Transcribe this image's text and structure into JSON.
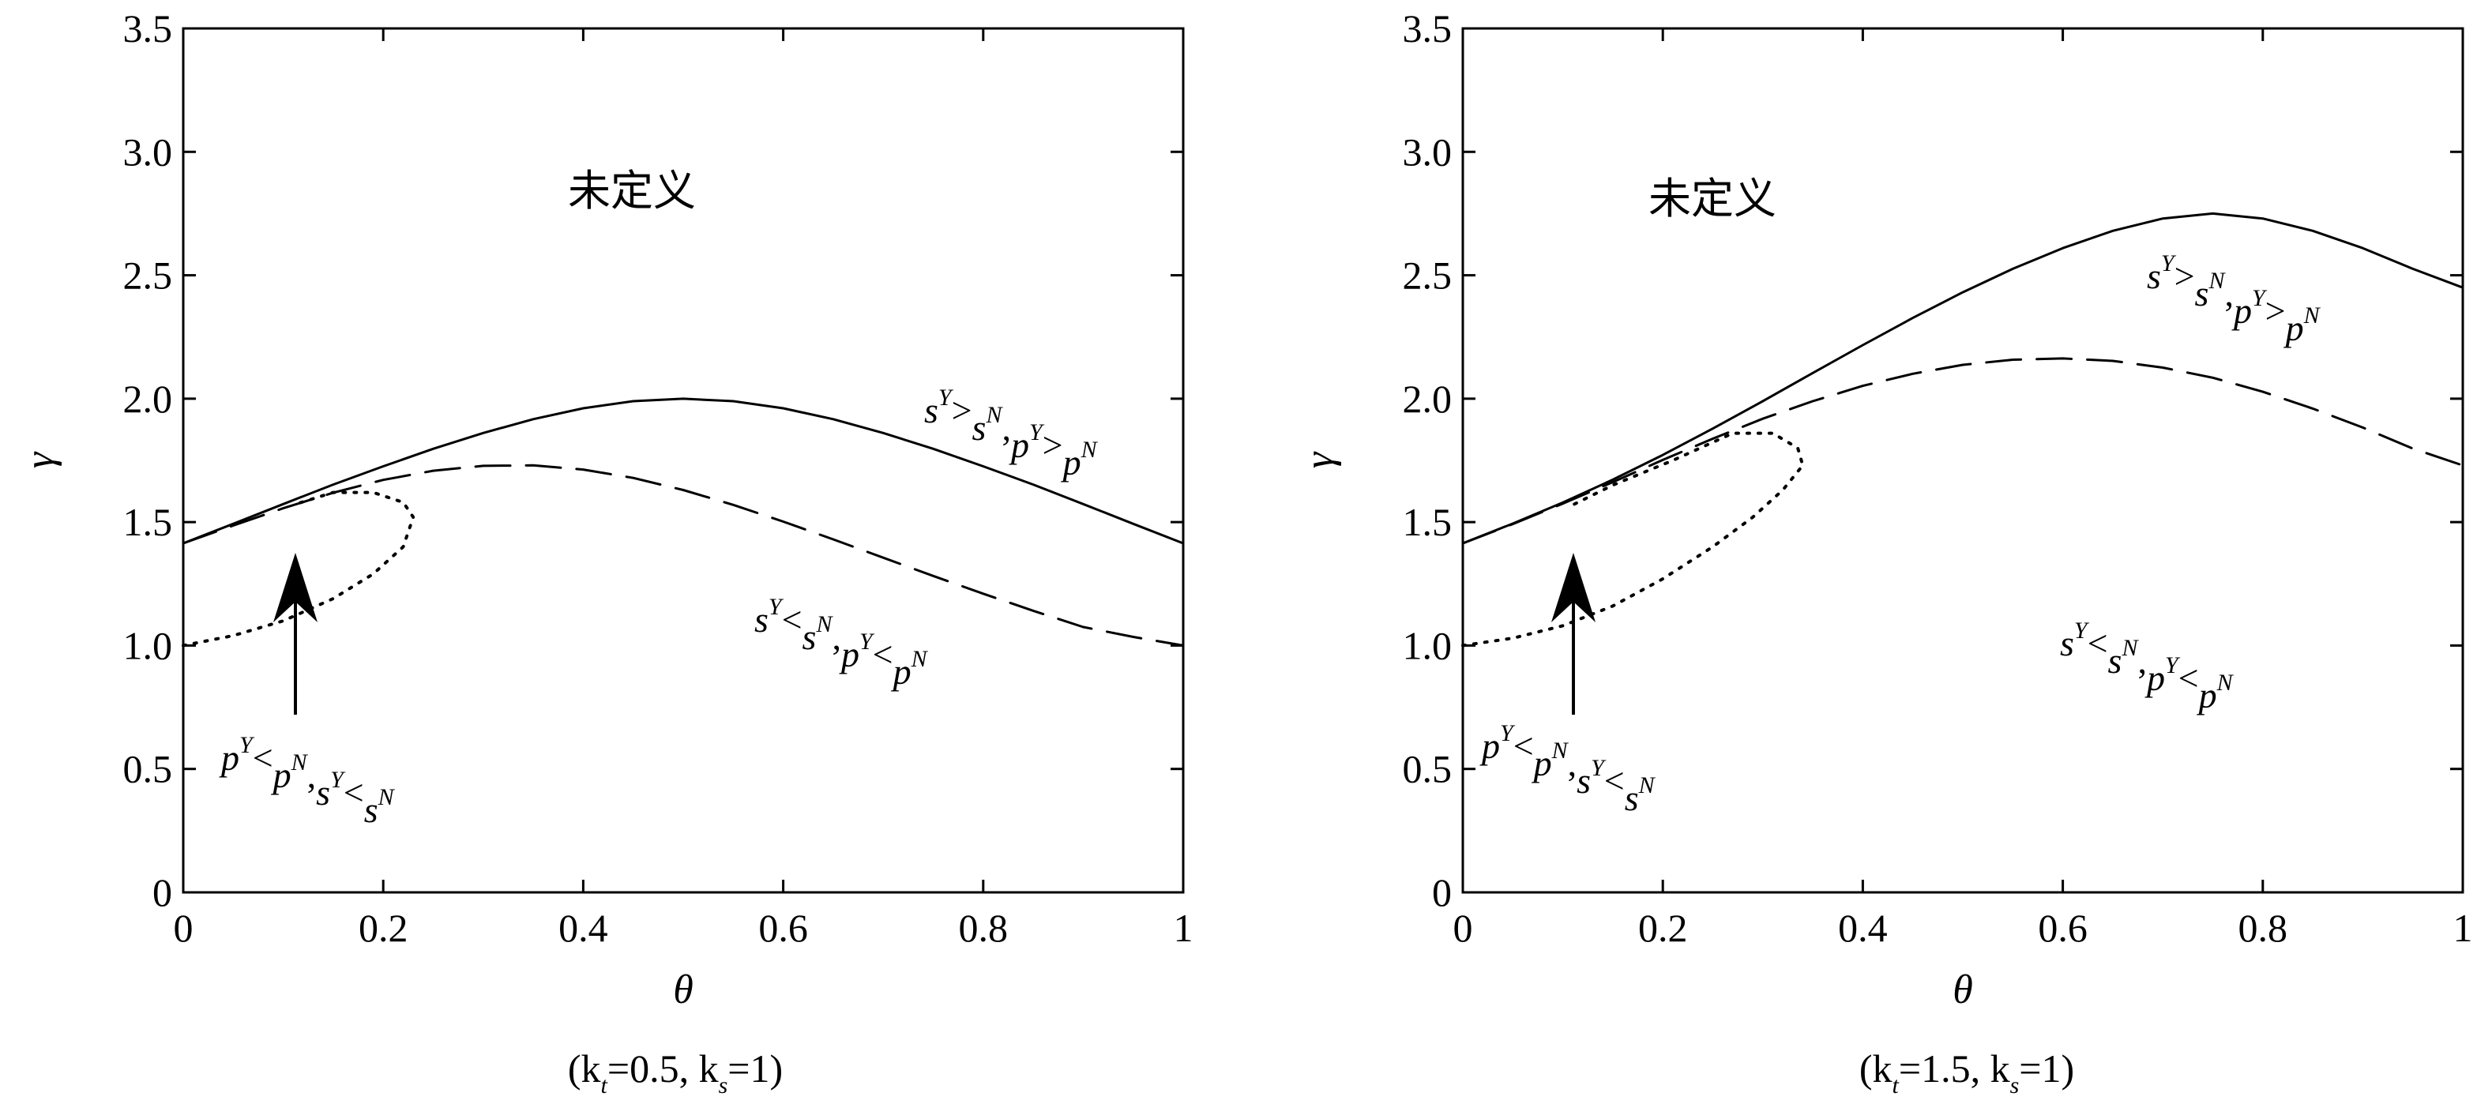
{
  "chart_data": [
    {
      "type": "line",
      "caption": "(k_t=0.5, k_s=1)",
      "caption_parts": {
        "open": "(k",
        "sub1": "t",
        "mid": "=0.5, k",
        "sub2": "s",
        "close": "=1)"
      },
      "xlabel": "θ",
      "ylabel": "γ",
      "xlim": [
        0,
        1
      ],
      "ylim": [
        0,
        3.5
      ],
      "xticks": [
        0,
        0.2,
        0.4,
        0.6,
        0.8,
        1
      ],
      "xtick_labels": [
        "0",
        "0.2",
        "0.4",
        "0.6",
        "0.8",
        "1"
      ],
      "yticks": [
        0,
        0.5,
        1.0,
        1.5,
        2.0,
        2.5,
        3.0,
        3.5
      ],
      "ytick_labels": [
        "0",
        "0.5",
        "1.0",
        "1.5",
        "2.0",
        "2.5",
        "3.0",
        "3.5"
      ],
      "grid": false,
      "series": [
        {
          "style": "solid",
          "x": [
            0,
            0.05,
            0.1,
            0.15,
            0.2,
            0.25,
            0.3,
            0.35,
            0.4,
            0.45,
            0.5,
            0.55,
            0.6,
            0.65,
            0.7,
            0.75,
            0.8,
            0.85,
            0.9,
            0.95,
            1.0
          ],
          "y": [
            1.414,
            1.493,
            1.573,
            1.652,
            1.726,
            1.797,
            1.861,
            1.917,
            1.961,
            1.99,
            2.0,
            1.99,
            1.961,
            1.917,
            1.861,
            1.797,
            1.726,
            1.652,
            1.573,
            1.493,
            1.414
          ]
        },
        {
          "style": "dashed",
          "x": [
            0,
            0.05,
            0.1,
            0.15,
            0.2,
            0.25,
            0.3,
            0.35,
            0.4,
            0.45,
            0.5,
            0.55,
            0.6,
            0.65,
            0.7,
            0.75,
            0.8,
            0.85,
            0.9,
            0.95,
            1.0
          ],
          "y": [
            1.414,
            1.486,
            1.556,
            1.619,
            1.671,
            1.708,
            1.728,
            1.73,
            1.713,
            1.679,
            1.63,
            1.57,
            1.502,
            1.43,
            1.356,
            1.282,
            1.21,
            1.141,
            1.075,
            1.035,
            1.0
          ]
        },
        {
          "style": "dotted",
          "x": [
            0,
            0.05,
            0.1,
            0.15,
            0.19,
            0.22,
            0.23,
            0.22,
            0.19,
            0.15,
            0.11
          ],
          "y": [
            1.0,
            1.04,
            1.1,
            1.19,
            1.29,
            1.4,
            1.52,
            1.58,
            1.62,
            1.62,
            1.57
          ]
        }
      ],
      "annotations": {
        "undefined_region": "未定义",
        "upper_region": {
          "base1": "s",
          "sup1": "Y",
          "rel1": ">",
          "base2": "s",
          "sup2": "N",
          "sep": ",",
          "base3": "p",
          "sup3": "Y",
          "rel2": ">",
          "base4": "p",
          "sup4": "N"
        },
        "lower_region": {
          "base1": "s",
          "sup1": "Y",
          "rel1": "<",
          "base2": "s",
          "sup2": "N",
          "sep": ",",
          "base3": "p",
          "sup3": "Y",
          "rel2": "<",
          "base4": "p",
          "sup4": "N"
        },
        "arrow_label": {
          "base1": "p",
          "sup1": "Y",
          "rel1": "<",
          "base2": "p",
          "sup2": "N",
          "sep": ",",
          "base3": "s",
          "sup3": "Y",
          "rel2": "<",
          "base4": "s",
          "sup4": "N"
        }
      }
    },
    {
      "type": "line",
      "caption": "(k_t=1.5, k_s=1)",
      "caption_parts": {
        "open": "(k",
        "sub1": "t",
        "mid": "=1.5, k",
        "sub2": "s",
        "close": "=1)"
      },
      "xlabel": "θ",
      "ylabel": "γ",
      "xlim": [
        0,
        1
      ],
      "ylim": [
        0,
        3.5
      ],
      "xticks": [
        0,
        0.2,
        0.4,
        0.6,
        0.8,
        1
      ],
      "xtick_labels": [
        "0",
        "0.2",
        "0.4",
        "0.6",
        "0.8",
        "1"
      ],
      "yticks": [
        0,
        0.5,
        1.0,
        1.5,
        2.0,
        2.5,
        3.0,
        3.5
      ],
      "ytick_labels": [
        "0",
        "0.5",
        "1.0",
        "1.5",
        "2.0",
        "2.5",
        "3.0",
        "3.5"
      ],
      "grid": false,
      "series": [
        {
          "style": "solid",
          "x": [
            0,
            0.05,
            0.1,
            0.15,
            0.2,
            0.25,
            0.3,
            0.35,
            0.4,
            0.45,
            0.5,
            0.55,
            0.6,
            0.65,
            0.7,
            0.75,
            0.8,
            0.85,
            0.9,
            0.95,
            1.0
          ],
          "y": [
            1.414,
            1.494,
            1.579,
            1.672,
            1.772,
            1.879,
            1.99,
            2.104,
            2.217,
            2.327,
            2.431,
            2.526,
            2.61,
            2.68,
            2.73,
            2.75,
            2.73,
            2.68,
            2.61,
            2.526,
            2.45
          ]
        },
        {
          "style": "dashed",
          "x": [
            0,
            0.05,
            0.1,
            0.15,
            0.2,
            0.25,
            0.3,
            0.35,
            0.4,
            0.45,
            0.5,
            0.55,
            0.6,
            0.65,
            0.7,
            0.75,
            0.8,
            0.85,
            0.9,
            0.95,
            1.0
          ],
          "y": [
            1.414,
            1.492,
            1.575,
            1.662,
            1.752,
            1.838,
            1.919,
            1.99,
            2.052,
            2.101,
            2.137,
            2.158,
            2.163,
            2.153,
            2.126,
            2.085,
            2.028,
            1.96,
            1.883,
            1.798,
            1.73
          ]
        },
        {
          "style": "dotted",
          "x": [
            0,
            0.05,
            0.1,
            0.15,
            0.2,
            0.25,
            0.29,
            0.32,
            0.34,
            0.335,
            0.31,
            0.27,
            0.21,
            0.15,
            0.11
          ],
          "y": [
            1.0,
            1.03,
            1.08,
            1.16,
            1.27,
            1.4,
            1.52,
            1.63,
            1.73,
            1.8,
            1.86,
            1.86,
            1.75,
            1.65,
            1.57
          ]
        }
      ],
      "annotations": {
        "undefined_region": "未定义",
        "upper_region": {
          "base1": "s",
          "sup1": "Y",
          "rel1": ">",
          "base2": "s",
          "sup2": "N",
          "sep": ",",
          "base3": "p",
          "sup3": "Y",
          "rel2": ">",
          "base4": "p",
          "sup4": "N"
        },
        "lower_region": {
          "base1": "s",
          "sup1": "Y",
          "rel1": "<",
          "base2": "s",
          "sup2": "N",
          "sep": ",",
          "base3": "p",
          "sup3": "Y",
          "rel2": "<",
          "base4": "p",
          "sup4": "N"
        },
        "arrow_label": {
          "base1": "p",
          "sup1": "Y",
          "rel1": "<",
          "base2": "p",
          "sup2": "N",
          "sep": ",",
          "base3": "s",
          "sup3": "Y",
          "rel2": "<",
          "base4": "s",
          "sup4": "N"
        }
      }
    }
  ]
}
